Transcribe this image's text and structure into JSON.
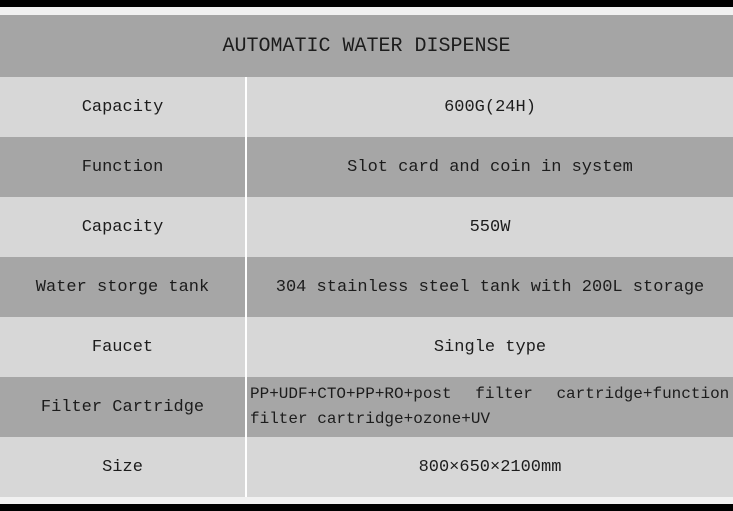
{
  "title": "AUTOMATIC WATER DISPENSE",
  "colors": {
    "frame": "#000000",
    "margin_strip": "#f1f1f1",
    "header_bg": "#a5a5a5",
    "row_dark": "#a6a6a6",
    "row_light": "#d7d7d7",
    "divider": "#ffffff",
    "text": "#1c1c1c"
  },
  "table": {
    "rows": [
      {
        "label": "Capacity",
        "value": "600G(24H)",
        "shade": "light"
      },
      {
        "label": "Function",
        "value": "Slot card and coin in system",
        "shade": "dark"
      },
      {
        "label": "Capacity",
        "value": "550W",
        "shade": "light"
      },
      {
        "label": "Water storge tank",
        "value": "304 stainless steel tank with 200L storage",
        "shade": "dark"
      },
      {
        "label": "Faucet",
        "value": "Single type",
        "shade": "light"
      },
      {
        "label": "Filter Cartridge",
        "value": "PP+UDF+CTO+PP+RO+post filter cartridge+function\nfilter cartridge+ozone+UV",
        "shade": "dark"
      },
      {
        "label": "Size",
        "value": "800×650×2100mm",
        "shade": "light"
      }
    ]
  }
}
